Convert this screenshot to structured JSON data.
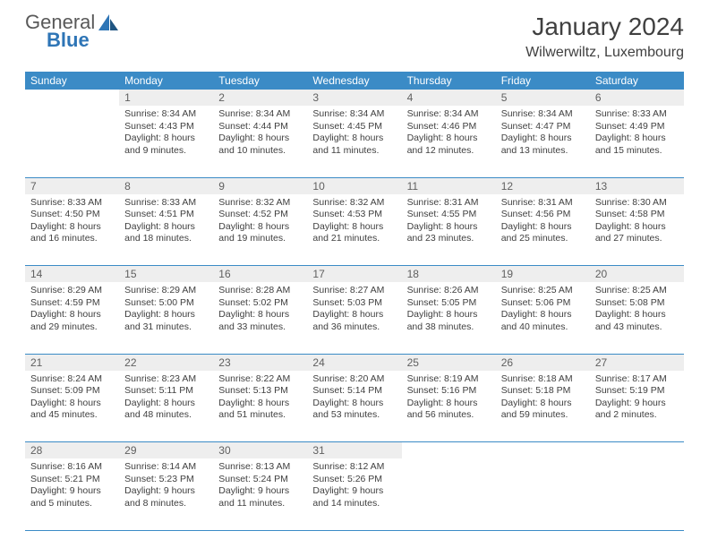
{
  "logo": {
    "line1": "General",
    "line2": "Blue"
  },
  "title": "January 2024",
  "location": "Wilwerwiltz, Luxembourg",
  "colors": {
    "header_bg": "#3b8bc6",
    "header_text": "#ffffff",
    "daynum_bg": "#eeeeee",
    "daynum_text": "#606060",
    "body_text": "#404040",
    "rule": "#3b8bc6",
    "logo_gray": "#595959",
    "logo_blue": "#2e75b6",
    "page_bg": "#ffffff"
  },
  "day_headers": [
    "Sunday",
    "Monday",
    "Tuesday",
    "Wednesday",
    "Thursday",
    "Friday",
    "Saturday"
  ],
  "weeks": [
    {
      "nums": [
        "",
        "1",
        "2",
        "3",
        "4",
        "5",
        "6"
      ],
      "cells": [
        {},
        {
          "sunrise": "Sunrise: 8:34 AM",
          "sunset": "Sunset: 4:43 PM",
          "daylight": "Daylight: 8 hours and 9 minutes."
        },
        {
          "sunrise": "Sunrise: 8:34 AM",
          "sunset": "Sunset: 4:44 PM",
          "daylight": "Daylight: 8 hours and 10 minutes."
        },
        {
          "sunrise": "Sunrise: 8:34 AM",
          "sunset": "Sunset: 4:45 PM",
          "daylight": "Daylight: 8 hours and 11 minutes."
        },
        {
          "sunrise": "Sunrise: 8:34 AM",
          "sunset": "Sunset: 4:46 PM",
          "daylight": "Daylight: 8 hours and 12 minutes."
        },
        {
          "sunrise": "Sunrise: 8:34 AM",
          "sunset": "Sunset: 4:47 PM",
          "daylight": "Daylight: 8 hours and 13 minutes."
        },
        {
          "sunrise": "Sunrise: 8:33 AM",
          "sunset": "Sunset: 4:49 PM",
          "daylight": "Daylight: 8 hours and 15 minutes."
        }
      ]
    },
    {
      "nums": [
        "7",
        "8",
        "9",
        "10",
        "11",
        "12",
        "13"
      ],
      "cells": [
        {
          "sunrise": "Sunrise: 8:33 AM",
          "sunset": "Sunset: 4:50 PM",
          "daylight": "Daylight: 8 hours and 16 minutes."
        },
        {
          "sunrise": "Sunrise: 8:33 AM",
          "sunset": "Sunset: 4:51 PM",
          "daylight": "Daylight: 8 hours and 18 minutes."
        },
        {
          "sunrise": "Sunrise: 8:32 AM",
          "sunset": "Sunset: 4:52 PM",
          "daylight": "Daylight: 8 hours and 19 minutes."
        },
        {
          "sunrise": "Sunrise: 8:32 AM",
          "sunset": "Sunset: 4:53 PM",
          "daylight": "Daylight: 8 hours and 21 minutes."
        },
        {
          "sunrise": "Sunrise: 8:31 AM",
          "sunset": "Sunset: 4:55 PM",
          "daylight": "Daylight: 8 hours and 23 minutes."
        },
        {
          "sunrise": "Sunrise: 8:31 AM",
          "sunset": "Sunset: 4:56 PM",
          "daylight": "Daylight: 8 hours and 25 minutes."
        },
        {
          "sunrise": "Sunrise: 8:30 AM",
          "sunset": "Sunset: 4:58 PM",
          "daylight": "Daylight: 8 hours and 27 minutes."
        }
      ]
    },
    {
      "nums": [
        "14",
        "15",
        "16",
        "17",
        "18",
        "19",
        "20"
      ],
      "cells": [
        {
          "sunrise": "Sunrise: 8:29 AM",
          "sunset": "Sunset: 4:59 PM",
          "daylight": "Daylight: 8 hours and 29 minutes."
        },
        {
          "sunrise": "Sunrise: 8:29 AM",
          "sunset": "Sunset: 5:00 PM",
          "daylight": "Daylight: 8 hours and 31 minutes."
        },
        {
          "sunrise": "Sunrise: 8:28 AM",
          "sunset": "Sunset: 5:02 PM",
          "daylight": "Daylight: 8 hours and 33 minutes."
        },
        {
          "sunrise": "Sunrise: 8:27 AM",
          "sunset": "Sunset: 5:03 PM",
          "daylight": "Daylight: 8 hours and 36 minutes."
        },
        {
          "sunrise": "Sunrise: 8:26 AM",
          "sunset": "Sunset: 5:05 PM",
          "daylight": "Daylight: 8 hours and 38 minutes."
        },
        {
          "sunrise": "Sunrise: 8:25 AM",
          "sunset": "Sunset: 5:06 PM",
          "daylight": "Daylight: 8 hours and 40 minutes."
        },
        {
          "sunrise": "Sunrise: 8:25 AM",
          "sunset": "Sunset: 5:08 PM",
          "daylight": "Daylight: 8 hours and 43 minutes."
        }
      ]
    },
    {
      "nums": [
        "21",
        "22",
        "23",
        "24",
        "25",
        "26",
        "27"
      ],
      "cells": [
        {
          "sunrise": "Sunrise: 8:24 AM",
          "sunset": "Sunset: 5:09 PM",
          "daylight": "Daylight: 8 hours and 45 minutes."
        },
        {
          "sunrise": "Sunrise: 8:23 AM",
          "sunset": "Sunset: 5:11 PM",
          "daylight": "Daylight: 8 hours and 48 minutes."
        },
        {
          "sunrise": "Sunrise: 8:22 AM",
          "sunset": "Sunset: 5:13 PM",
          "daylight": "Daylight: 8 hours and 51 minutes."
        },
        {
          "sunrise": "Sunrise: 8:20 AM",
          "sunset": "Sunset: 5:14 PM",
          "daylight": "Daylight: 8 hours and 53 minutes."
        },
        {
          "sunrise": "Sunrise: 8:19 AM",
          "sunset": "Sunset: 5:16 PM",
          "daylight": "Daylight: 8 hours and 56 minutes."
        },
        {
          "sunrise": "Sunrise: 8:18 AM",
          "sunset": "Sunset: 5:18 PM",
          "daylight": "Daylight: 8 hours and 59 minutes."
        },
        {
          "sunrise": "Sunrise: 8:17 AM",
          "sunset": "Sunset: 5:19 PM",
          "daylight": "Daylight: 9 hours and 2 minutes."
        }
      ]
    },
    {
      "nums": [
        "28",
        "29",
        "30",
        "31",
        "",
        "",
        ""
      ],
      "cells": [
        {
          "sunrise": "Sunrise: 8:16 AM",
          "sunset": "Sunset: 5:21 PM",
          "daylight": "Daylight: 9 hours and 5 minutes."
        },
        {
          "sunrise": "Sunrise: 8:14 AM",
          "sunset": "Sunset: 5:23 PM",
          "daylight": "Daylight: 9 hours and 8 minutes."
        },
        {
          "sunrise": "Sunrise: 8:13 AM",
          "sunset": "Sunset: 5:24 PM",
          "daylight": "Daylight: 9 hours and 11 minutes."
        },
        {
          "sunrise": "Sunrise: 8:12 AM",
          "sunset": "Sunset: 5:26 PM",
          "daylight": "Daylight: 9 hours and 14 minutes."
        },
        {},
        {},
        {}
      ]
    }
  ]
}
